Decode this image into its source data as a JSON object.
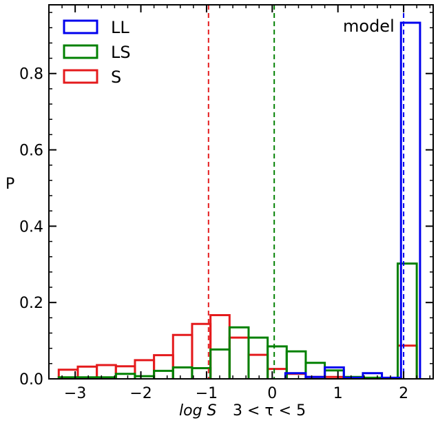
{
  "chart_data": {
    "type": "histogram",
    "xlabel": "log S",
    "xlabel_suffix": "3 < τ < 5",
    "ylabel": "P",
    "xlim": [
      -3.4,
      2.45
    ],
    "ylim": [
      0,
      0.98
    ],
    "xticks": [
      -3,
      -2,
      -1,
      0,
      1,
      2
    ],
    "xtick_labels": [
      "−3",
      "−2",
      "−1",
      "0",
      "1",
      "2"
    ],
    "yticks": [
      0.0,
      0.2,
      0.4,
      0.6,
      0.8
    ],
    "ytick_labels": [
      "0.0",
      "0.2",
      "0.4",
      "0.6",
      "0.8"
    ],
    "legend": {
      "position": "top-left"
    },
    "annotation": "model",
    "vlines": [
      {
        "x": -0.97,
        "color": "#e41a1c",
        "style": "dashed"
      },
      {
        "x": 0.03,
        "color": "#008000",
        "style": "dashed"
      },
      {
        "x": 2.0,
        "color": "#0000ee",
        "style": "dashed"
      }
    ],
    "series": [
      {
        "name": "S",
        "color": "#e41a1c",
        "edges": [
          -3.25,
          -2.96,
          -2.67,
          -2.38,
          -2.09,
          -1.8,
          -1.51,
          -1.22,
          -0.94,
          -0.65,
          -0.36,
          -0.07,
          0.22,
          0.51,
          0.8,
          1.09,
          1.38,
          1.67,
          1.91,
          2.2
        ],
        "values": [
          0.024,
          0.032,
          0.036,
          0.033,
          0.049,
          0.062,
          0.115,
          0.144,
          0.167,
          0.108,
          0.063,
          0.026,
          0.013,
          0.005,
          0.005,
          0.003,
          0.002,
          0.001,
          0.087
        ]
      },
      {
        "name": "LS",
        "color": "#008000",
        "edges": [
          -3.25,
          -2.96,
          -2.67,
          -2.38,
          -2.09,
          -1.8,
          -1.51,
          -1.22,
          -0.94,
          -0.65,
          -0.36,
          -0.07,
          0.22,
          0.51,
          0.8,
          1.09,
          1.38,
          1.67,
          1.91,
          2.2
        ],
        "values": [
          0.004,
          0.004,
          0.004,
          0.013,
          0.007,
          0.021,
          0.03,
          0.028,
          0.077,
          0.135,
          0.108,
          0.085,
          0.072,
          0.042,
          0.022,
          0.005,
          0.003,
          0.002,
          0.302
        ]
      },
      {
        "name": "LL",
        "color": "#0000ee",
        "edges": [
          0.2,
          0.51,
          0.8,
          1.09,
          1.38,
          1.67,
          1.96,
          2.25
        ],
        "values": [
          0.015,
          0.005,
          0.03,
          0.003,
          0.015,
          0.003,
          0.933
        ]
      }
    ]
  }
}
